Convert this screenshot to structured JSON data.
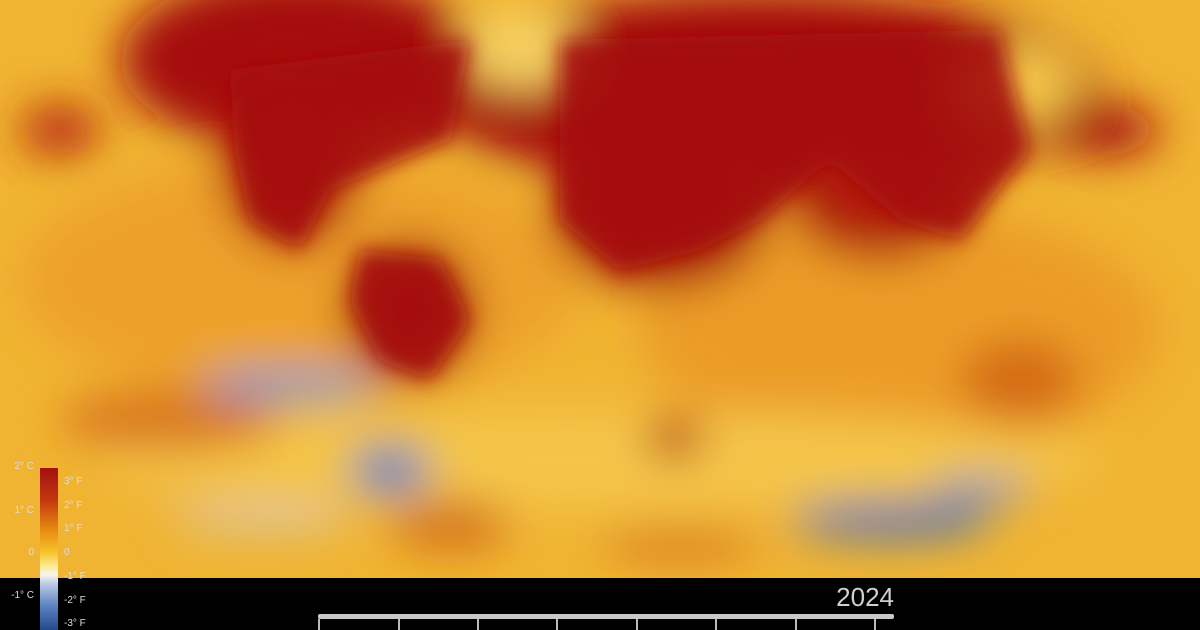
{
  "map": {
    "projection": "robinson",
    "variable": "temperature anomaly",
    "colors": {
      "hot": "#a50f0f",
      "warm": "#e68a12",
      "mild": "#f7c32a",
      "neutral": "#f6f4ee",
      "cool": "#5d83c0",
      "cold": "#234b8c"
    }
  },
  "legend": {
    "celsius_labels": [
      "2° C",
      "1° C",
      "0",
      "-1° C"
    ],
    "fahrenheit_labels": [
      "3° F",
      "2° F",
      "1° F",
      "0",
      "-1° F",
      "-2° F",
      "-3° F"
    ]
  },
  "timeline": {
    "year": "2024",
    "progress": 1.0
  }
}
